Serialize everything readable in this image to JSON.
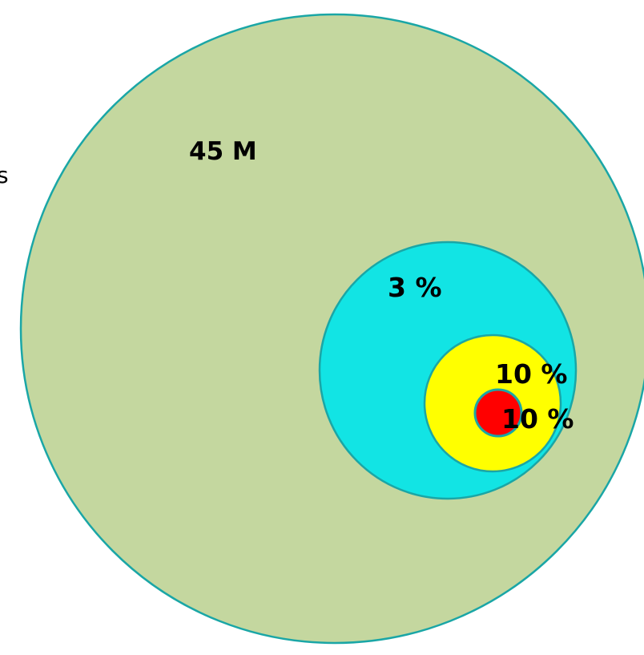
{
  "diagram": {
    "edge_text": "s",
    "rings": [
      {
        "name": "outer",
        "label": "45 M",
        "fill": "#c4d79f",
        "stroke": "#1aa6a6"
      },
      {
        "name": "middle",
        "label": "3 %",
        "fill": "#12e4e4",
        "stroke": "#1aa6a6"
      },
      {
        "name": "inner",
        "label": "10 %",
        "fill": "#ffff00",
        "stroke": "#1aa6a6"
      },
      {
        "name": "core",
        "label": "10 %",
        "fill": "#ff0000",
        "stroke": "#1aa6a6"
      }
    ]
  }
}
